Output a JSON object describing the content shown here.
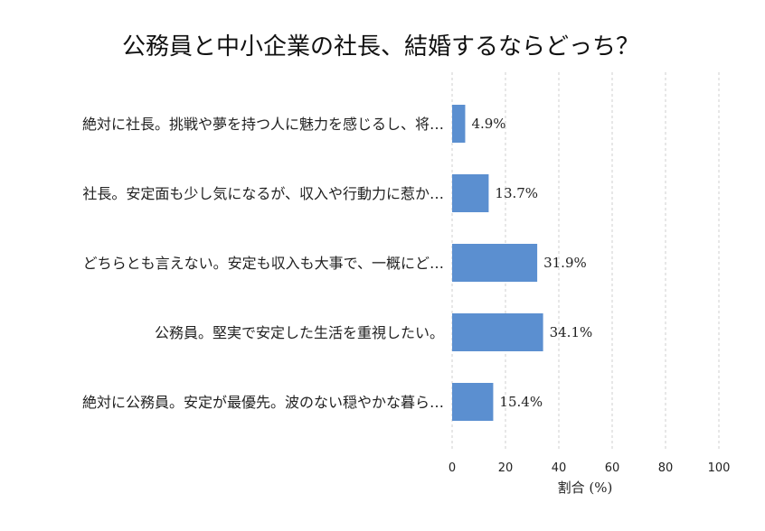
{
  "chart_data": {
    "type": "bar",
    "orientation": "horizontal",
    "title": "公務員と中小企業の社長、結婚するならどっち？",
    "xlabel": "割合 (%)",
    "ylabel": "",
    "xlim": [
      0,
      100
    ],
    "xticks": [
      "0",
      "20",
      "40",
      "60",
      "80",
      "100"
    ],
    "grid": "vertical-dashed",
    "categories": [
      "絶対に社長。挑戦や夢を持つ人に魅力を感じるし、将…",
      "社長。安定面も少し気になるが、収入や行動力に惹か…",
      "どちらとも言えない。安定も収入も大事で、一概にど…",
      "公務員。堅実で安定した生活を重視したい。",
      "絶対に公務員。安定が最優先。波のない穏やかな暮ら…"
    ],
    "values": [
      4.9,
      13.7,
      31.9,
      34.1,
      15.4
    ],
    "value_labels": [
      "4.9%",
      "13.7%",
      "31.9%",
      "34.1%",
      "15.4%"
    ],
    "bar_color": "#5b8fd0"
  }
}
